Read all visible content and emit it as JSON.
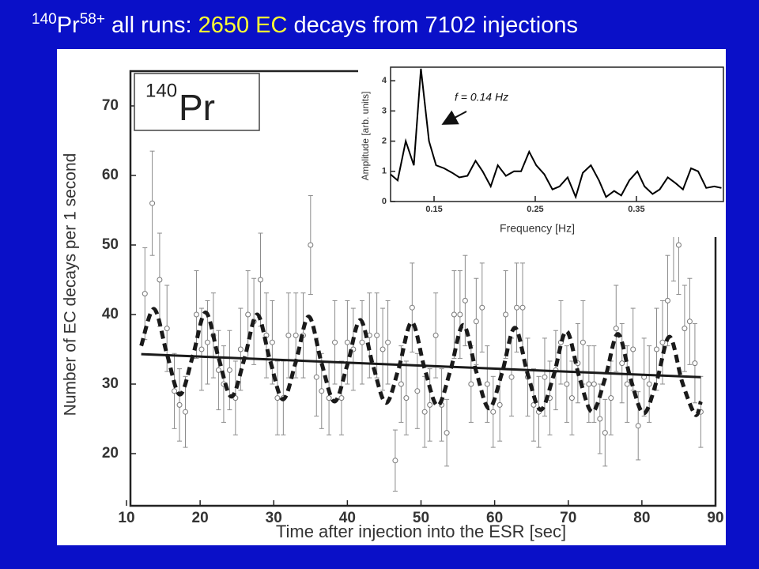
{
  "title": {
    "mass": "140",
    "element": "Pr",
    "charge": "58+",
    "text1": " all runs: ",
    "highlight": "2650 EC",
    "text2": " decays from 7102 injections"
  },
  "chart_data": [
    {
      "type": "scatter",
      "xlabel": "Time after injection into the ESR [sec]",
      "ylabel": "Number of EC decays per 1 second",
      "legend_label": {
        "mass": "140",
        "element": "Pr"
      },
      "xlim": [
        10,
        90
      ],
      "xticks": [
        10,
        20,
        30,
        40,
        50,
        60,
        70,
        80,
        90
      ],
      "ylim": [
        12.5,
        75
      ],
      "yticks": [
        20,
        30,
        40,
        50,
        60,
        70
      ],
      "series": [
        {
          "kind": "points",
          "color": "#8c8c8c",
          "x": [
            12.5,
            13.5,
            14.5,
            15.5,
            16.5,
            17.2,
            18,
            19.5,
            20.2,
            21,
            21.8,
            22.5,
            23.2,
            24,
            24.8,
            25.5,
            26.5,
            27.3,
            28.2,
            29,
            29.8,
            30.5,
            31.3,
            32,
            33,
            34,
            35,
            35.8,
            36.5,
            37.5,
            38.3,
            39.2,
            40,
            40.8,
            42,
            43,
            44,
            44.8,
            45.5,
            46.5,
            47.3,
            48,
            48.8,
            49.5,
            50.5,
            51.2,
            52,
            52.8,
            53.5,
            54.5,
            55.3,
            56,
            56.8,
            57.5,
            58.3,
            59,
            59.8,
            60.7,
            61.5,
            62.3,
            63,
            63.8,
            64.5,
            65.3,
            66,
            66.8,
            67.5,
            68.3,
            69,
            69.8,
            70.5,
            71.3,
            72,
            72.8,
            73.5,
            74.3,
            75,
            75.8,
            76.5,
            77.3,
            78,
            78.8,
            79.5,
            80.3,
            81,
            82,
            82.8,
            83.5,
            84.3,
            85,
            85.8,
            86.5,
            87.2,
            88
          ],
          "values": [
            43,
            56,
            45,
            38,
            29,
            27,
            26,
            40,
            35,
            36,
            37,
            32,
            30,
            32,
            28,
            35,
            40,
            39,
            45,
            37,
            36,
            28,
            28,
            37,
            37,
            37,
            50,
            31,
            29,
            28,
            36,
            28,
            36,
            35,
            36,
            37,
            37,
            35,
            36,
            19,
            30,
            28,
            41,
            29,
            26,
            27,
            37,
            27,
            23,
            40,
            40,
            42,
            30,
            39,
            41,
            30,
            26,
            27,
            40,
            31,
            41,
            41,
            31,
            27,
            26,
            31,
            28,
            32,
            36,
            30,
            28,
            33,
            36,
            30,
            30,
            25,
            23,
            28,
            38,
            33,
            30,
            35,
            24,
            31,
            30,
            35,
            36,
            42,
            52,
            50,
            38,
            39,
            33,
            26
          ],
          "errors": [
            6.6,
            7.5,
            6.7,
            6.2,
            5.4,
            5.2,
            5.1,
            6.3,
            5.9,
            6.0,
            6.1,
            5.7,
            5.5,
            5.7,
            5.3,
            5.9,
            6.3,
            6.2,
            6.7,
            6.1,
            6.0,
            5.3,
            5.3,
            6.1,
            6.1,
            6.1,
            7.1,
            5.6,
            5.4,
            5.3,
            6.0,
            5.3,
            6.0,
            5.9,
            6.0,
            6.1,
            6.1,
            5.9,
            6.0,
            4.4,
            5.5,
            5.3,
            6.4,
            5.4,
            5.1,
            5.2,
            6.1,
            5.2,
            4.8,
            6.3,
            6.3,
            6.5,
            5.5,
            6.2,
            6.4,
            5.5,
            5.1,
            5.2,
            6.3,
            5.6,
            6.4,
            6.4,
            5.6,
            5.2,
            5.1,
            5.6,
            5.3,
            5.7,
            6.0,
            5.5,
            5.3,
            5.7,
            6.0,
            5.5,
            5.5,
            5.0,
            4.8,
            5.3,
            6.2,
            5.7,
            5.5,
            5.9,
            4.9,
            5.6,
            5.5,
            5.9,
            6.0,
            6.5,
            7.2,
            7.1,
            6.2,
            6.2,
            5.7,
            5.1
          ]
        },
        {
          "kind": "solid",
          "color": "#1a1a1a",
          "x": [
            12,
            88
          ],
          "values": [
            34.3,
            31
          ]
        },
        {
          "kind": "dashed",
          "color": "#1a1a1a",
          "x": [
            12,
            13.75,
            15.5,
            17.25,
            19,
            20.75,
            22.5,
            24.25,
            26,
            27.75,
            29.5,
            31.25,
            33,
            34.75,
            36.5,
            38.25,
            40,
            41.75,
            43.5,
            45.25,
            47,
            48.75,
            50.5,
            52.25,
            54,
            55.75,
            57.5,
            59.25,
            61,
            62.75,
            64.5,
            66.25,
            68,
            69.75,
            71.5,
            73.25,
            75,
            76.75,
            78.5,
            80.25,
            82,
            83.75,
            85.5,
            87.25,
            88
          ],
          "values": [
            35.5,
            40.8,
            34.3,
            28.5,
            34.0,
            40.3,
            33.8,
            28.2,
            33.6,
            40,
            33.4,
            27.8,
            33.2,
            39.7,
            33.0,
            27.5,
            32.8,
            39.2,
            32.6,
            27.3,
            32.4,
            38.9,
            32.2,
            26.9,
            32.0,
            38.5,
            31.8,
            26.5,
            31.6,
            38.1,
            31.4,
            26.3,
            31.2,
            37.6,
            31.0,
            26.0,
            30.8,
            37.2,
            30.6,
            25.8,
            30.4,
            36.8,
            30.2,
            25.6,
            27.5
          ]
        }
      ]
    },
    {
      "type": "line",
      "xlabel": "Frequency [Hz]",
      "ylabel": "Amplitude [arb. units]",
      "annotation": "f = 0.14 Hz",
      "xlim": [
        0.107,
        0.436
      ],
      "xticks": [
        0.15,
        0.25,
        0.35
      ],
      "ylim": [
        0,
        4.45
      ],
      "yticks": [
        0,
        1,
        2,
        3,
        4
      ],
      "series": [
        {
          "kind": "solid",
          "color": "#000000",
          "x": [
            0.107,
            0.114,
            0.122,
            0.13,
            0.137,
            0.145,
            0.152,
            0.16,
            0.168,
            0.175,
            0.183,
            0.191,
            0.198,
            0.206,
            0.213,
            0.221,
            0.229,
            0.236,
            0.244,
            0.251,
            0.259,
            0.267,
            0.274,
            0.282,
            0.29,
            0.297,
            0.305,
            0.313,
            0.32,
            0.328,
            0.335,
            0.343,
            0.351,
            0.358,
            0.366,
            0.373,
            0.381,
            0.389,
            0.396,
            0.404,
            0.411,
            0.419,
            0.427,
            0.434
          ],
          "values": [
            0.9,
            0.7,
            2.0,
            1.2,
            4.4,
            2.0,
            1.2,
            1.1,
            0.95,
            0.8,
            0.85,
            1.35,
            1.0,
            0.5,
            1.2,
            0.85,
            1.0,
            1.0,
            1.65,
            1.2,
            0.9,
            0.4,
            0.5,
            0.8,
            0.15,
            0.95,
            1.2,
            0.7,
            0.15,
            0.35,
            0.2,
            0.7,
            1.0,
            0.5,
            0.25,
            0.4,
            0.8,
            0.6,
            0.4,
            1.1,
            1.0,
            0.45,
            0.5,
            0.45
          ]
        }
      ]
    }
  ]
}
